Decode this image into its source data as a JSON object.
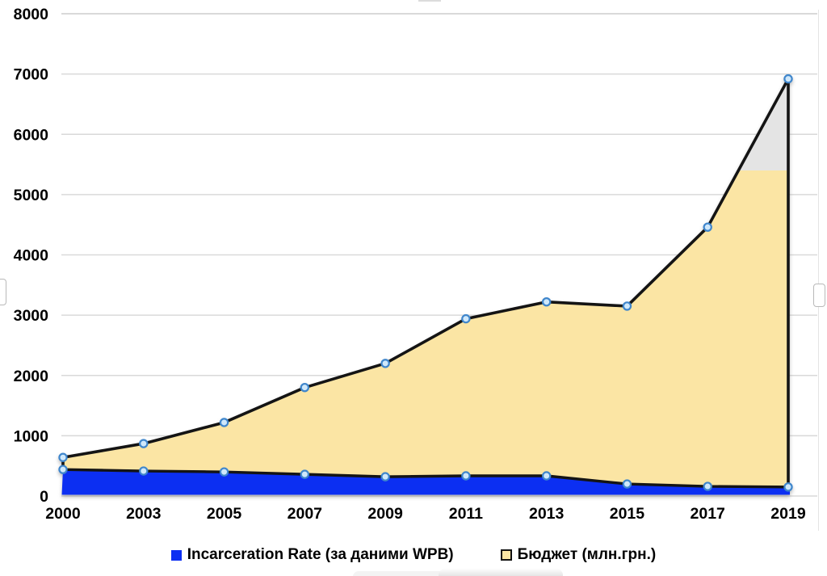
{
  "chart_data": {
    "type": "area",
    "title": "",
    "categories": [
      "2000",
      "2003",
      "2005",
      "2007",
      "2009",
      "2011",
      "2013",
      "2015",
      "2017",
      "2019"
    ],
    "series": [
      {
        "name": "Incarceration Rate (за даними WPB)",
        "values": [
          440,
          415,
          400,
          360,
          320,
          335,
          335,
          200,
          160,
          150
        ],
        "fill": "#0c2ff2"
      },
      {
        "name": "Бюджет (млн.грн.)",
        "values": [
          640,
          870,
          1220,
          1800,
          2200,
          2940,
          3220,
          3150,
          4460,
          6920
        ],
        "fill": "#fbe5a4",
        "overflow_fill": "#e4e4e4",
        "overflow_cap": 5400
      }
    ],
    "ylim": [
      0,
      8000
    ],
    "ytick_step": 1000,
    "grid": "horizontal",
    "gridline_color": "#d9d9d9",
    "outline_color": "#141414",
    "marker_fill": "#cfe8fb",
    "marker_stroke": "#3f86cc",
    "legend_position": "bottom"
  }
}
